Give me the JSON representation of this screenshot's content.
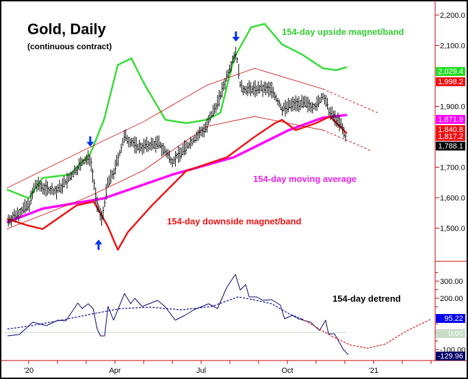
{
  "chart_data": {
    "type": "line",
    "title": "Gold, Daily",
    "subtitle": "(continuous contract)",
    "x_unit": "months since Jan 2020",
    "x_ticks": [
      "'20",
      "Apr",
      "Jul",
      "Oct",
      "'21"
    ],
    "x_tick_months": [
      0,
      3,
      6,
      9,
      12
    ],
    "price_panel": {
      "ylim": [
        1410,
        2230
      ],
      "y_ticks": [
        2200,
        2100,
        1900,
        1700,
        1600,
        1500
      ],
      "y_tick_labels": [
        "2,200.0",
        "2,100.0",
        "1,900.0",
        "1,700.0",
        "1,600.0",
        "1,500.0"
      ],
      "series": [
        {
          "name": "Gold price",
          "color": "#000000",
          "points": [
            [
              -0.71,
              1526
            ],
            [
              0,
              1575
            ],
            [
              0.24,
              1643
            ],
            [
              0.95,
              1620
            ],
            [
              1.43,
              1665
            ],
            [
              1.79,
              1710
            ],
            [
              2.14,
              1733
            ],
            [
              2.38,
              1575
            ],
            [
              2.55,
              1530
            ],
            [
              2.74,
              1643
            ],
            [
              2.98,
              1688
            ],
            [
              3.33,
              1800
            ],
            [
              3.81,
              1766
            ],
            [
              4.52,
              1778
            ],
            [
              5.0,
              1721
            ],
            [
              5.48,
              1766
            ],
            [
              6.19,
              1834
            ],
            [
              6.67,
              1935
            ],
            [
              7.02,
              2036
            ],
            [
              7.21,
              2081
            ],
            [
              7.38,
              1957
            ],
            [
              7.86,
              1957
            ],
            [
              8.45,
              1957
            ],
            [
              8.81,
              1890
            ],
            [
              9.29,
              1912
            ],
            [
              10.0,
              1901
            ],
            [
              10.24,
              1935
            ],
            [
              10.48,
              1879
            ],
            [
              10.83,
              1845
            ],
            [
              11.07,
              1788
            ]
          ]
        },
        {
          "name": "154-day moving average",
          "color": "#ff00ff",
          "points": [
            [
              -0.76,
              1519
            ],
            [
              0.48,
              1564
            ],
            [
              2.62,
              1598
            ],
            [
              5.0,
              1676
            ],
            [
              7.14,
              1733
            ],
            [
              9.05,
              1822
            ],
            [
              10.24,
              1863
            ],
            [
              11.07,
              1872
            ]
          ]
        },
        {
          "name": "154-day upside magnet/band",
          "color": "#33dd33",
          "points": [
            [
              -0.76,
              1627
            ],
            [
              0,
              1598
            ],
            [
              0.48,
              1665
            ],
            [
              1.43,
              1676
            ],
            [
              2.14,
              1744
            ],
            [
              2.62,
              1856
            ],
            [
              3.1,
              2036
            ],
            [
              3.57,
              2058
            ],
            [
              4.05,
              1969
            ],
            [
              4.76,
              1856
            ],
            [
              5.48,
              1845
            ],
            [
              6.19,
              1856
            ],
            [
              6.67,
              1879
            ],
            [
              7.14,
              2058
            ],
            [
              7.74,
              2160
            ],
            [
              8.21,
              2171
            ],
            [
              8.81,
              2104
            ],
            [
              9.52,
              2070
            ],
            [
              10.24,
              2025
            ],
            [
              10.71,
              2019
            ],
            [
              11.07,
              2029
            ]
          ]
        },
        {
          "name": "154-day downside magnet/band",
          "color": "#ee1111",
          "points": [
            [
              -0.76,
              1530
            ],
            [
              0,
              1508
            ],
            [
              0.48,
              1497
            ],
            [
              1.67,
              1575
            ],
            [
              2.26,
              1587
            ],
            [
              2.74,
              1508
            ],
            [
              3.1,
              1429
            ],
            [
              3.45,
              1487
            ],
            [
              4.29,
              1575
            ],
            [
              5.48,
              1688
            ],
            [
              6.9,
              1733
            ],
            [
              7.86,
              1800
            ],
            [
              8.57,
              1845
            ],
            [
              8.81,
              1856
            ],
            [
              9.29,
              1822
            ],
            [
              10.0,
              1845
            ],
            [
              10.48,
              1867
            ],
            [
              11.07,
              1811
            ]
          ]
        },
        {
          "name": "Upper channel",
          "color": "#cc0000",
          "points": [
            [
              -0.76,
              1632
            ],
            [
              2.0,
              1760
            ],
            [
              4.0,
              1850
            ],
            [
              6.19,
              1969
            ],
            [
              7.86,
              2025
            ],
            [
              10.24,
              1957
            ]
          ],
          "projection": [
            [
              10.24,
              1957
            ],
            [
              12.14,
              1879
            ]
          ]
        },
        {
          "name": "Lower channel",
          "color": "#cc0000",
          "points": [
            [
              -0.76,
              1497
            ],
            [
              2.0,
              1600
            ],
            [
              4.0,
              1690
            ],
            [
              6.19,
              1834
            ],
            [
              7.86,
              1867
            ],
            [
              10.24,
              1822
            ]
          ],
          "projection": [
            [
              10.24,
              1822
            ],
            [
              11.9,
              1755
            ]
          ]
        }
      ],
      "value_tags": [
        {
          "label": "2,029.4",
          "value": 2029.4,
          "color": "#22dd22"
        },
        {
          "label": "1,998.2",
          "value": 1998.2,
          "color": "#ee1111"
        },
        {
          "label": "1,871.9",
          "value": 1871.9,
          "color": "#ff00ff"
        },
        {
          "label": "1,840.8",
          "value": 1840.8,
          "color": "#ee1111"
        },
        {
          "label": "1,817.2",
          "value": 1817.2,
          "color": "#ee1111"
        },
        {
          "label": "1,788.1",
          "value": 1788.1,
          "color": "#000000"
        }
      ],
      "annotations": [
        {
          "text": "154-day upside magnet/band",
          "color": "#33cc33"
        },
        {
          "text": "154-day moving average",
          "color": "#ee22ee"
        },
        {
          "text": "154-day downside magnet/band",
          "color": "#ee1111"
        }
      ],
      "arrows": [
        {
          "direction": "down",
          "month": 2.14,
          "price": 1770
        },
        {
          "direction": "down",
          "month": 7.21,
          "price": 2115
        },
        {
          "direction": "up",
          "month": 2.43,
          "price": 1460
        }
      ]
    },
    "detrend_panel": {
      "ylim": [
        -170,
        400
      ],
      "y_ticks": [
        300,
        200,
        100,
        0,
        -100
      ],
      "y_tick_labels": [
        "300.00",
        "200.00",
        "",
        "",
        "-100.00"
      ],
      "annotation": "154-day detrend",
      "series": [
        {
          "name": "154-day detrend",
          "color": "#000066",
          "points": [
            [
              -0.74,
              -20
            ],
            [
              -0.33,
              -12
            ],
            [
              -0.12,
              20
            ],
            [
              0.14,
              60
            ],
            [
              0.62,
              40
            ],
            [
              1.02,
              72
            ],
            [
              1.29,
              68
            ],
            [
              1.71,
              172
            ],
            [
              1.86,
              140
            ],
            [
              2.07,
              168
            ],
            [
              2.24,
              140
            ],
            [
              2.38,
              20
            ],
            [
              2.5,
              -20
            ],
            [
              2.64,
              -20
            ],
            [
              2.76,
              152
            ],
            [
              2.95,
              72
            ],
            [
              3.12,
              140
            ],
            [
              3.33,
              228
            ],
            [
              3.55,
              168
            ],
            [
              3.69,
              200
            ],
            [
              3.95,
              152
            ],
            [
              4.48,
              188
            ],
            [
              4.74,
              152
            ],
            [
              5.1,
              72
            ],
            [
              5.43,
              100
            ],
            [
              5.74,
              132
            ],
            [
              6.26,
              168
            ],
            [
              6.57,
              140
            ],
            [
              6.88,
              260
            ],
            [
              7.19,
              340
            ],
            [
              7.36,
              248
            ],
            [
              7.55,
              280
            ],
            [
              7.67,
              208
            ],
            [
              7.93,
              208
            ],
            [
              8.14,
              188
            ],
            [
              8.45,
              192
            ],
            [
              8.76,
              160
            ],
            [
              8.9,
              80
            ],
            [
              9.17,
              100
            ],
            [
              9.38,
              80
            ],
            [
              9.81,
              60
            ],
            [
              10.12,
              12
            ],
            [
              10.33,
              72
            ],
            [
              10.43,
              -8
            ],
            [
              10.64,
              -8
            ],
            [
              10.95,
              -100
            ],
            [
              11.12,
              -130
            ]
          ]
        },
        {
          "name": "Detrend average",
          "color": "#000099",
          "dashed": true,
          "points": [
            [
              -0.74,
              20
            ],
            [
              0.1,
              40
            ],
            [
              1.14,
              72
            ],
            [
              2.19,
              108
            ],
            [
              3.21,
              140
            ],
            [
              4.26,
              148
            ],
            [
              5.31,
              132
            ],
            [
              6.36,
              152
            ],
            [
              7.29,
              208
            ],
            [
              7.81,
              192
            ],
            [
              8.45,
              168
            ],
            [
              9.07,
              108
            ],
            [
              9.5,
              80
            ]
          ]
        },
        {
          "name": "Detrend projection",
          "color": "#dd1111",
          "dashed": true,
          "points": [
            [
              9.5,
              80
            ],
            [
              10.12,
              20
            ],
            [
              10.52,
              -20
            ],
            [
              11.17,
              -72
            ],
            [
              11.79,
              -92
            ],
            [
              12.4,
              -68
            ],
            [
              13.14,
              8
            ],
            [
              14.02,
              80
            ]
          ]
        }
      ],
      "value_tags": [
        {
          "label": "95.22",
          "value": 95.22,
          "color": "#0000ee"
        },
        {
          "label": "0.00",
          "value": 0,
          "color": "#c8dcc8"
        },
        {
          "label": "-129.96",
          "value": -129.96,
          "color": "#000066"
        }
      ]
    }
  }
}
